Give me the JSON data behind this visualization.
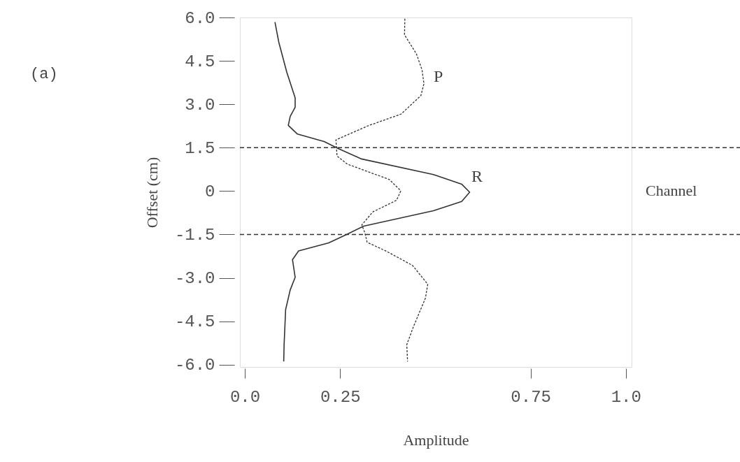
{
  "chart_data": {
    "type": "line",
    "xlabel": "Amplitude",
    "ylabel": "Offset (cm)",
    "xlim": [
      -0.013,
      1.015
    ],
    "ylim": [
      -6.08,
      6.0
    ],
    "xticks": [
      {
        "value": 0,
        "label": "0.0"
      },
      0.25,
      0.75,
      {
        "value": 1,
        "label": "1.0"
      }
    ],
    "yticks": [
      {
        "value": 6,
        "label": "6.0"
      },
      {
        "value": 4.5,
        "label": "4.5"
      },
      {
        "value": 3,
        "label": "3.0"
      },
      {
        "value": 1.5,
        "label": "1.5"
      },
      0,
      {
        "value": -1.5,
        "label": "-1.5"
      },
      {
        "value": -3,
        "label": "-3.0"
      },
      {
        "value": -4.5,
        "label": "-4.5"
      },
      {
        "value": -6,
        "label": "-6.0"
      }
    ],
    "grid": false,
    "series": [
      {
        "name": "R",
        "color": "#333333",
        "line_style": "solid",
        "x": [
          0.079,
          0.089,
          0.11,
          0.132,
          0.132,
          0.119,
          0.114,
          0.138,
          0.208,
          0.245,
          0.306,
          0.495,
          0.569,
          0.59,
          0.569,
          0.495,
          0.312,
          0.269,
          0.22,
          0.141,
          0.125,
          0.132,
          0.119,
          0.107,
          0.103,
          0.102
        ],
        "values": [
          5.84,
          5.15,
          4.11,
          3.22,
          2.9,
          2.58,
          2.27,
          1.97,
          1.71,
          1.47,
          1.11,
          0.57,
          0.24,
          -0.04,
          -0.36,
          -0.68,
          -1.21,
          -1.49,
          -1.79,
          -2.07,
          -2.37,
          -2.98,
          -3.42,
          -4.1,
          -5.31,
          -5.89
        ]
      },
      {
        "name": "P",
        "color": "#333333",
        "line_style": "dotted",
        "x": [
          0.42,
          0.419,
          0.45,
          0.465,
          0.47,
          0.462,
          0.41,
          0.324,
          0.239,
          0.242,
          0.269,
          0.379,
          0.407,
          0.409,
          0.398,
          0.336,
          0.307,
          0.315,
          0.321,
          0.373,
          0.44,
          0.48,
          0.474,
          0.443,
          0.425,
          0.427
        ],
        "values": [
          5.96,
          5.4,
          4.75,
          4.19,
          3.71,
          3.3,
          2.66,
          2.26,
          1.77,
          1.21,
          0.93,
          0.4,
          0.04,
          0.0,
          -0.32,
          -0.72,
          -1.17,
          -1.45,
          -1.77,
          -2.09,
          -2.57,
          -3.22,
          -3.7,
          -4.67,
          -5.31,
          -5.89
        ]
      }
    ],
    "ref_lines": [
      {
        "axis": "y",
        "value": 1.5,
        "line_style": "dashed"
      },
      {
        "axis": "y",
        "value": -1.5,
        "line_style": "dashed"
      }
    ],
    "annotations": [
      "(a)",
      "Channel"
    ]
  }
}
